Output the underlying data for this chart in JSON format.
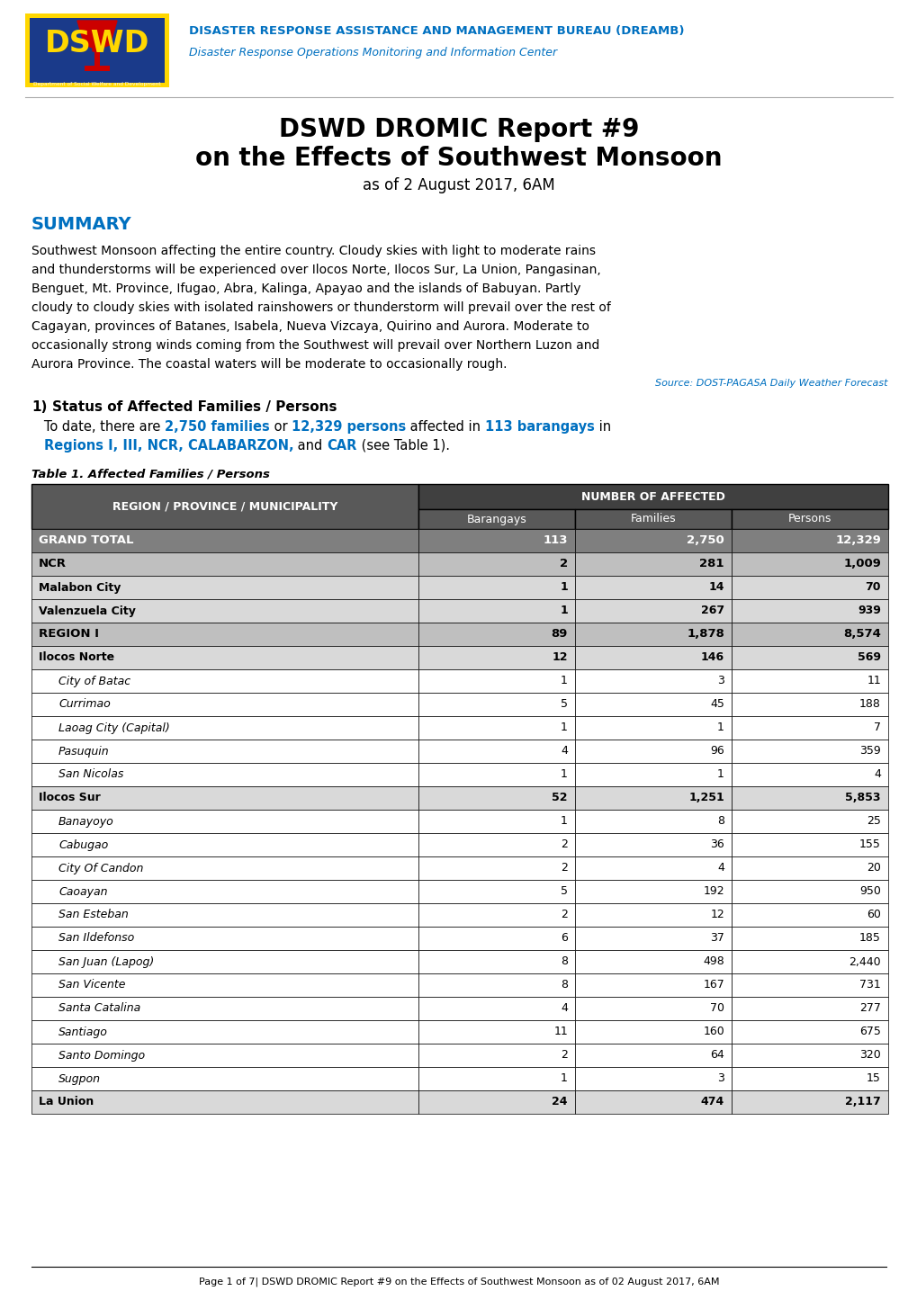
{
  "title_line1": "DSWD DROMIC Report #9",
  "title_line2": "on the Effects of Southwest Monsoon",
  "title_line3": "as of 2 August 2017, 6AM",
  "header_line1": "DISASTER RESPONSE ASSISTANCE AND MANAGEMENT BUREAU (DREAMB)",
  "header_line2": "Disaster Response Operations Monitoring and Information Center",
  "summary_title": "SUMMARY",
  "summary_text": "Southwest Monsoon affecting the entire country. Cloudy skies with light to moderate rains and thunderstorms will be experienced over Ilocos Norte, Ilocos Sur, La Union, Pangasinan, Benguet, Mt. Province, Ifugao, Abra, Kalinga, Apayao and the islands of Babuyan. Partly cloudy to cloudy skies with isolated rainshowers or thunderstorm will prevail over the rest of Cagayan, provinces of Batanes, Isabela, Nueva Vizcaya, Quirino and Aurora. Moderate to occasionally strong winds coming from the Southwest will prevail over Northern Luzon and Aurora Province. The coastal waters will be moderate to occasionally rough.",
  "source_text": "Source: DOST-PAGASA Daily Weather Forecast",
  "section1_title": "Status of Affected Families / Persons",
  "section1_number": "1)",
  "table_title": "Table 1. Affected Families / Persons",
  "col_header1": "REGION / PROVINCE / MUNICIPALITY",
  "col_header2": "NUMBER OF AFFECTED",
  "col_sub1": "Barangays",
  "col_sub2": "Families",
  "col_sub3": "Persons",
  "table_rows": [
    {
      "name": "GRAND TOTAL",
      "barangays": "113",
      "families": "2,750",
      "persons": "12,329",
      "level": "grand_total"
    },
    {
      "name": "NCR",
      "barangays": "2",
      "families": "281",
      "persons": "1,009",
      "level": "region"
    },
    {
      "name": "Malabon City",
      "barangays": "1",
      "families": "14",
      "persons": "70",
      "level": "province"
    },
    {
      "name": "Valenzuela City",
      "barangays": "1",
      "families": "267",
      "persons": "939",
      "level": "province"
    },
    {
      "name": "REGION I",
      "barangays": "89",
      "families": "1,878",
      "persons": "8,574",
      "level": "region"
    },
    {
      "name": "Ilocos Norte",
      "barangays": "12",
      "families": "146",
      "persons": "569",
      "level": "province"
    },
    {
      "name": "City of Batac",
      "barangays": "1",
      "families": "3",
      "persons": "11",
      "level": "municipality"
    },
    {
      "name": "Currimao",
      "barangays": "5",
      "families": "45",
      "persons": "188",
      "level": "municipality"
    },
    {
      "name": "Laoag City (Capital)",
      "barangays": "1",
      "families": "1",
      "persons": "7",
      "level": "municipality"
    },
    {
      "name": "Pasuquin",
      "barangays": "4",
      "families": "96",
      "persons": "359",
      "level": "municipality"
    },
    {
      "name": "San Nicolas",
      "barangays": "1",
      "families": "1",
      "persons": "4",
      "level": "municipality"
    },
    {
      "name": "Ilocos Sur",
      "barangays": "52",
      "families": "1,251",
      "persons": "5,853",
      "level": "province"
    },
    {
      "name": "Banayoyo",
      "barangays": "1",
      "families": "8",
      "persons": "25",
      "level": "municipality"
    },
    {
      "name": "Cabugao",
      "barangays": "2",
      "families": "36",
      "persons": "155",
      "level": "municipality"
    },
    {
      "name": "City Of Candon",
      "barangays": "2",
      "families": "4",
      "persons": "20",
      "level": "municipality"
    },
    {
      "name": "Caoayan",
      "barangays": "5",
      "families": "192",
      "persons": "950",
      "level": "municipality"
    },
    {
      "name": "San Esteban",
      "barangays": "2",
      "families": "12",
      "persons": "60",
      "level": "municipality"
    },
    {
      "name": "San Ildefonso",
      "barangays": "6",
      "families": "37",
      "persons": "185",
      "level": "municipality"
    },
    {
      "name": "San Juan (Lapog)",
      "barangays": "8",
      "families": "498",
      "persons": "2,440",
      "level": "municipality"
    },
    {
      "name": "San Vicente",
      "barangays": "8",
      "families": "167",
      "persons": "731",
      "level": "municipality"
    },
    {
      "name": "Santa Catalina",
      "barangays": "4",
      "families": "70",
      "persons": "277",
      "level": "municipality"
    },
    {
      "name": "Santiago",
      "barangays": "11",
      "families": "160",
      "persons": "675",
      "level": "municipality"
    },
    {
      "name": "Santo Domingo",
      "barangays": "2",
      "families": "64",
      "persons": "320",
      "level": "municipality"
    },
    {
      "name": "Sugpon",
      "barangays": "1",
      "families": "3",
      "persons": "15",
      "level": "municipality"
    },
    {
      "name": "La Union",
      "barangays": "24",
      "families": "474",
      "persons": "2,117",
      "level": "province"
    }
  ],
  "colors": {
    "cyan_blue": "#0070C0",
    "black": "#000000",
    "white": "#ffffff",
    "grand_total_bg": "#7f7f7f",
    "region_bg": "#bfbfbf",
    "province_bg": "#d9d9d9",
    "municipality_bg": "#ffffff",
    "table_header_dark": "#404040",
    "table_header_mid": "#595959"
  },
  "page_footer": "Page 1 of 7| DSWD DROMIC Report #9 on the Effects of Southwest Monsoon as of 02 August 2017, 6AM",
  "background_color": "#ffffff"
}
